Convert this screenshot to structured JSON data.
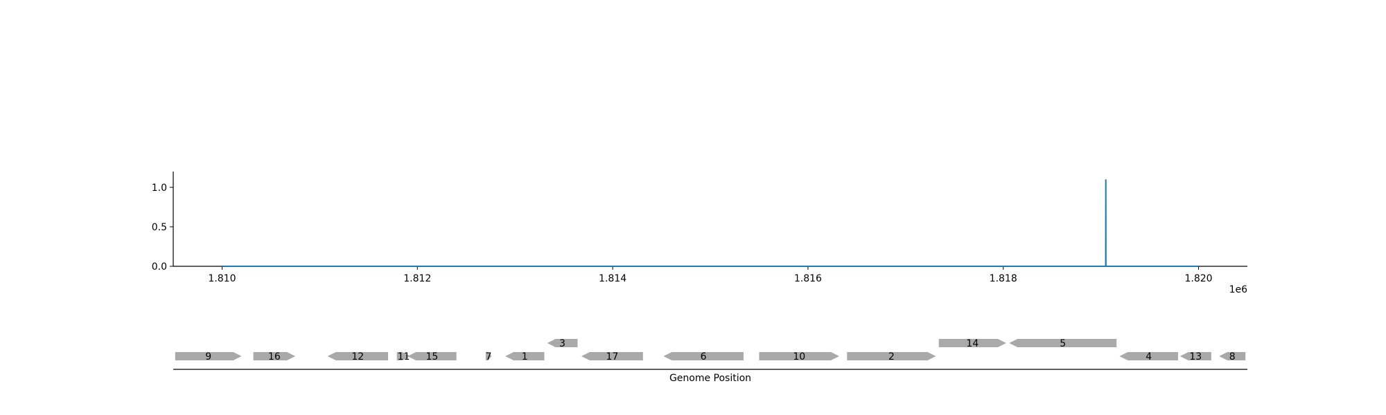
{
  "chart_data": [
    {
      "type": "line",
      "x": [
        1810000,
        1819049,
        1819050,
        1819051,
        1820000
      ],
      "y": [
        0.0,
        0.0,
        1.1,
        0.0,
        0.0
      ],
      "xlim": [
        1809500,
        1820500
      ],
      "ylim": [
        0.0,
        1.2
      ],
      "xticks": [
        "1.810",
        "1.812",
        "1.814",
        "1.816",
        "1.818",
        "1.820"
      ],
      "xtick_values": [
        1810000,
        1812000,
        1814000,
        1816000,
        1818000,
        1820000
      ],
      "yticks": [
        "0.0",
        "0.5",
        "1.0"
      ],
      "ytick_values": [
        0.0,
        0.5,
        1.0
      ],
      "x_offset_label": "1e6",
      "grid": false,
      "line_color": "#1f77b4"
    },
    {
      "type": "gene-track",
      "xlabel": "Genome Position",
      "gene_color": "#a9a9a9",
      "genes": [
        {
          "label": "9",
          "start": 1809520,
          "end": 1810200,
          "strand": 1,
          "row": 0
        },
        {
          "label": "16",
          "start": 1810320,
          "end": 1810750,
          "strand": 1,
          "row": 0
        },
        {
          "label": "12",
          "start": 1811080,
          "end": 1811700,
          "strand": -1,
          "row": 0
        },
        {
          "label": "11",
          "start": 1811790,
          "end": 1811930,
          "strand": 1,
          "row": 0
        },
        {
          "label": "15",
          "start": 1811900,
          "end": 1812400,
          "strand": -1,
          "row": 0
        },
        {
          "label": "7",
          "start": 1812700,
          "end": 1812760,
          "strand": 1,
          "row": 0
        },
        {
          "label": "1",
          "start": 1812900,
          "end": 1813300,
          "strand": -1,
          "row": 0
        },
        {
          "label": "3",
          "start": 1813330,
          "end": 1813640,
          "strand": -1,
          "row": 1
        },
        {
          "label": "17",
          "start": 1813680,
          "end": 1814310,
          "strand": -1,
          "row": 0
        },
        {
          "label": "6",
          "start": 1814520,
          "end": 1815340,
          "strand": -1,
          "row": 0
        },
        {
          "label": "10",
          "start": 1815500,
          "end": 1816320,
          "strand": 1,
          "row": 0
        },
        {
          "label": "2",
          "start": 1816400,
          "end": 1817310,
          "strand": 1,
          "row": 0
        },
        {
          "label": "14",
          "start": 1817340,
          "end": 1818030,
          "strand": 1,
          "row": 1
        },
        {
          "label": "5",
          "start": 1818060,
          "end": 1819160,
          "strand": -1,
          "row": 1
        },
        {
          "label": "4",
          "start": 1819190,
          "end": 1819790,
          "strand": -1,
          "row": 0
        },
        {
          "label": "13",
          "start": 1819810,
          "end": 1820130,
          "strand": -1,
          "row": 0
        },
        {
          "label": "8",
          "start": 1820210,
          "end": 1820480,
          "strand": -1,
          "row": 0
        }
      ]
    }
  ]
}
